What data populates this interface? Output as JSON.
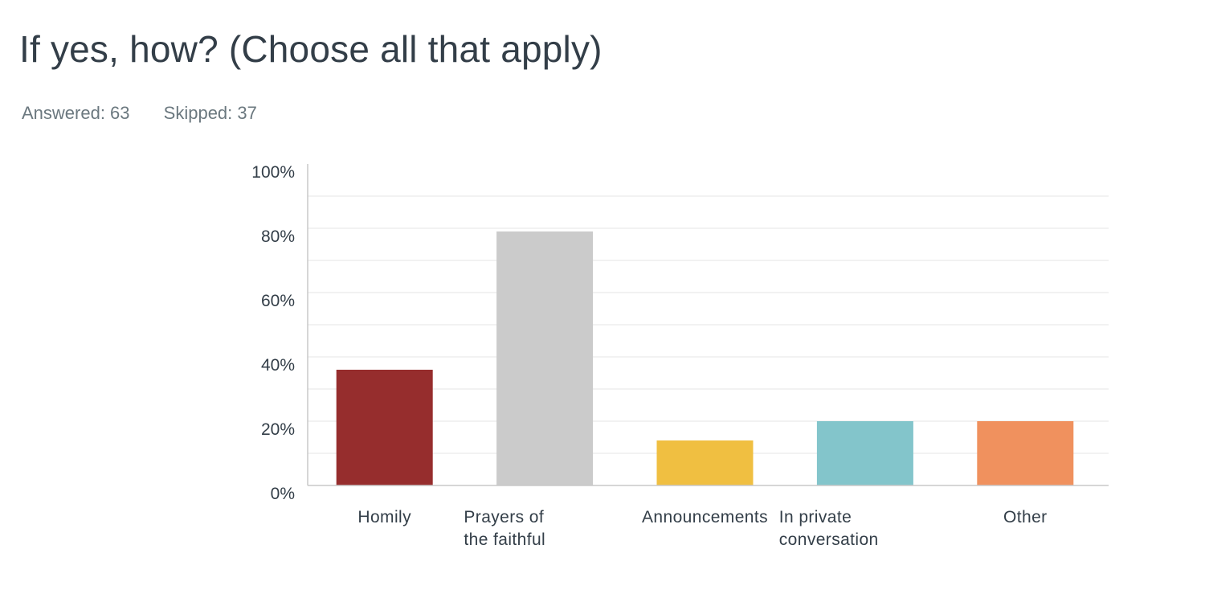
{
  "header": {
    "title": "If yes, how? (Choose all that apply)",
    "answered": "Answered: 63",
    "skipped": "Skipped: 37"
  },
  "chart_data": {
    "type": "bar",
    "title": "If yes, how? (Choose all that apply)",
    "xlabel": "",
    "ylabel": "",
    "ylim": [
      0,
      100
    ],
    "grid": true,
    "y_ticks": [
      "0%",
      "20%",
      "40%",
      "60%",
      "80%",
      "100%"
    ],
    "categories": [
      "Homily",
      "Prayers of the faithful",
      "Announcements",
      "In private conversation",
      "Other"
    ],
    "category_label_lines": [
      [
        "Homily"
      ],
      [
        "Prayers of",
        "the faithful"
      ],
      [
        "Announcements"
      ],
      [
        "In private",
        "conversation"
      ],
      [
        "Other"
      ]
    ],
    "values": [
      36,
      79,
      14,
      20,
      20
    ],
    "colors": [
      "#962d2d",
      "#cbcbcb",
      "#f0bf41",
      "#83c5cb",
      "#f0915e"
    ]
  }
}
